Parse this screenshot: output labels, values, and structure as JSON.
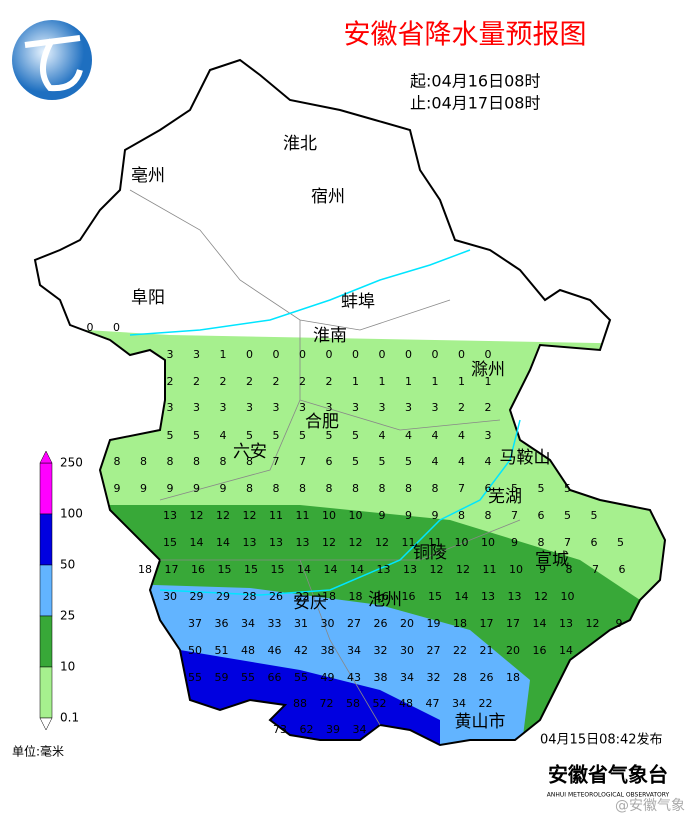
{
  "header": {
    "title": "安徽省降水量预报图",
    "start": "起:04月16日08时",
    "end": "止:04月17日08时"
  },
  "cities": [
    "淮北",
    "亳州",
    "宿州",
    "蚌埠",
    "阜阳",
    "淮南",
    "滁州",
    "合肥",
    "六安",
    "马鞍山",
    "芜湖",
    "铜陵",
    "宣城",
    "安庆",
    "池州",
    "黄山市"
  ],
  "grid_values": [
    [
      "0",
      "0"
    ],
    [
      "3",
      "3",
      "1",
      "0",
      "0",
      "0",
      "0",
      "0",
      "0",
      "0",
      "0",
      "0",
      "0"
    ],
    [
      "2",
      "2",
      "2",
      "2",
      "2",
      "2",
      "2",
      "1",
      "1",
      "1",
      "1",
      "1",
      "1"
    ],
    [
      "3",
      "3",
      "3",
      "3",
      "3",
      "3",
      "3",
      "3",
      "3",
      "3",
      "3",
      "2",
      "2"
    ],
    [
      "5",
      "5",
      "4",
      "5",
      "5",
      "5",
      "5",
      "5",
      "4",
      "4",
      "4",
      "4",
      "3"
    ],
    [
      "8",
      "8",
      "8",
      "8",
      "8",
      "8",
      "7",
      "7",
      "6",
      "5",
      "5",
      "5",
      "4",
      "4",
      "4"
    ],
    [
      "9",
      "9",
      "9",
      "9",
      "9",
      "8",
      "8",
      "8",
      "8",
      "8",
      "8",
      "8",
      "8",
      "7",
      "6",
      "5",
      "5",
      "5"
    ],
    [
      "13",
      "12",
      "12",
      "12",
      "11",
      "11",
      "10",
      "10",
      "9",
      "9",
      "9",
      "8",
      "8",
      "7",
      "6",
      "5",
      "5"
    ],
    [
      "15",
      "14",
      "14",
      "13",
      "13",
      "13",
      "12",
      "12",
      "12",
      "11",
      "11",
      "10",
      "10",
      "9",
      "8",
      "7",
      "6",
      "5"
    ],
    [
      "18",
      "17",
      "16",
      "15",
      "15",
      "15",
      "14",
      "14",
      "14",
      "13",
      "13",
      "12",
      "12",
      "11",
      "10",
      "9",
      "8",
      "7",
      "6"
    ],
    [
      "30",
      "29",
      "29",
      "28",
      "26",
      "22",
      "18",
      "18",
      "16",
      "16",
      "15",
      "14",
      "13",
      "13",
      "12",
      "10"
    ],
    [
      "37",
      "36",
      "34",
      "33",
      "31",
      "30",
      "27",
      "26",
      "20",
      "19",
      "18",
      "17",
      "17",
      "14",
      "13",
      "12",
      "9"
    ],
    [
      "50",
      "51",
      "48",
      "46",
      "42",
      "38",
      "34",
      "32",
      "30",
      "27",
      "22",
      "21",
      "20",
      "16",
      "14"
    ],
    [
      "55",
      "59",
      "55",
      "66",
      "55",
      "49",
      "43",
      "38",
      "34",
      "32",
      "28",
      "26",
      "18"
    ],
    [
      "88",
      "72",
      "58",
      "52",
      "48",
      "47",
      "34",
      "22"
    ],
    [
      "73",
      "62",
      "39",
      "34"
    ]
  ],
  "legend": {
    "labels": [
      "250",
      "100",
      "50",
      "25",
      "10",
      "0.1"
    ],
    "colors": [
      "#ff00ff",
      "#0000e0",
      "#62b4ff",
      "#38a838",
      "#a6f08e"
    ],
    "unit": "单位:毫米"
  },
  "footer": {
    "issued": "04月15日08:42发布",
    "agency": "安徽省气象台",
    "agency_en": "ANHUI METEOROLOGICAL OBSERVATORY",
    "watermark": "@安徽气象"
  }
}
